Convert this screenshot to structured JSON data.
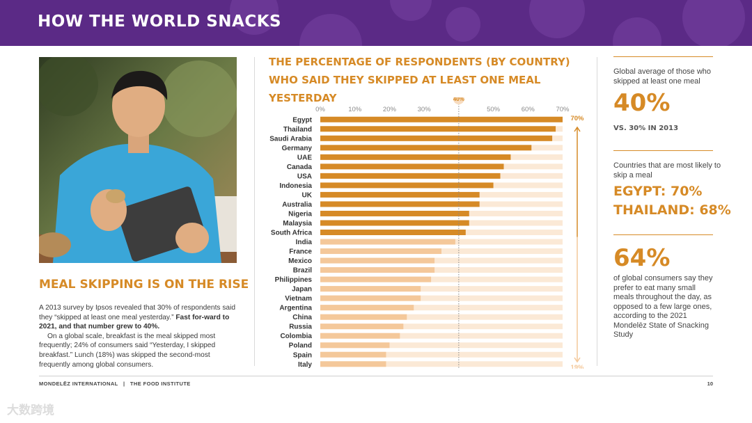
{
  "header": {
    "title": "HOW THE WORLD SNACKS"
  },
  "left": {
    "heading": "MEAL SKIPPING IS ON THE RISE",
    "p1_a": "A 2013 survey by Ipsos revealed that 30% of respondents said they “skipped at least one meal yesterday.” ",
    "p1_b": "Fast for-ward to 2021, and that number grew to 40%.",
    "p2": "On a global scale, breakfast is the meal skipped most frequently; 24% of consumers said “Yesterday, I skipped breakfast.” Lunch (18%) was skipped the second-most frequently among global consumers."
  },
  "chart_data": {
    "type": "bar",
    "orientation": "horizontal",
    "title": "THE PERCENTAGE OF RESPONDENTS (BY COUNTRY) WHO SAID THEY SKIPPED AT LEAST ONE MEAL YESTERDAY",
    "categories": [
      "Egypt",
      "Thailand",
      "Saudi Arabia",
      "Germany",
      "UAE",
      "Canada",
      "USA",
      "Indonesia",
      "UK",
      "Australia",
      "Nigeria",
      "Malaysia",
      "South Africa",
      "India",
      "France",
      "Mexico",
      "Brazil",
      "Philippines",
      "Japan",
      "Vietnam",
      "Argentina",
      "China",
      "Russia",
      "Colombia",
      "Poland",
      "Spain",
      "Italy"
    ],
    "values": [
      70,
      68,
      67,
      61,
      55,
      53,
      52,
      50,
      46,
      46,
      43,
      43,
      42,
      39,
      35,
      33,
      33,
      32,
      29,
      29,
      27,
      25,
      24,
      23,
      20,
      19,
      19
    ],
    "highlight_threshold": 40,
    "xlim": [
      0,
      70
    ],
    "ticks": [
      "0%",
      "10%",
      "20%",
      "30%",
      "",
      "50%",
      "60%",
      "70%"
    ],
    "reference_line": {
      "value": 40,
      "label": "40%"
    },
    "range_labels": {
      "top": "70%",
      "bottom": "19%"
    },
    "colors": {
      "above": "#d68a26",
      "below": "#f4c89a",
      "track": "#fbe9d6",
      "reference": "#888888"
    }
  },
  "sidebar": {
    "s1_label": "Global average of those who skipped at least one meal",
    "s1_value": "40%",
    "s1_note": "VS. 30% IN 2013",
    "s2_label": "Countries that are most likely to skip a meal",
    "s2_line1": "EGYPT: 70%",
    "s2_line2": "THAILAND: 68%",
    "s3_value": "64%",
    "s3_desc": "of global consumers say they prefer to eat many small meals throughout the day, as opposed to a few large ones, according to the 2021 Mondelēz State of Snacking Study"
  },
  "footer": {
    "org": "MONDELĒZ INTERNATIONAL   |   THE FOOD INSTITUTE",
    "page": "10"
  },
  "watermark": "大数跨境"
}
